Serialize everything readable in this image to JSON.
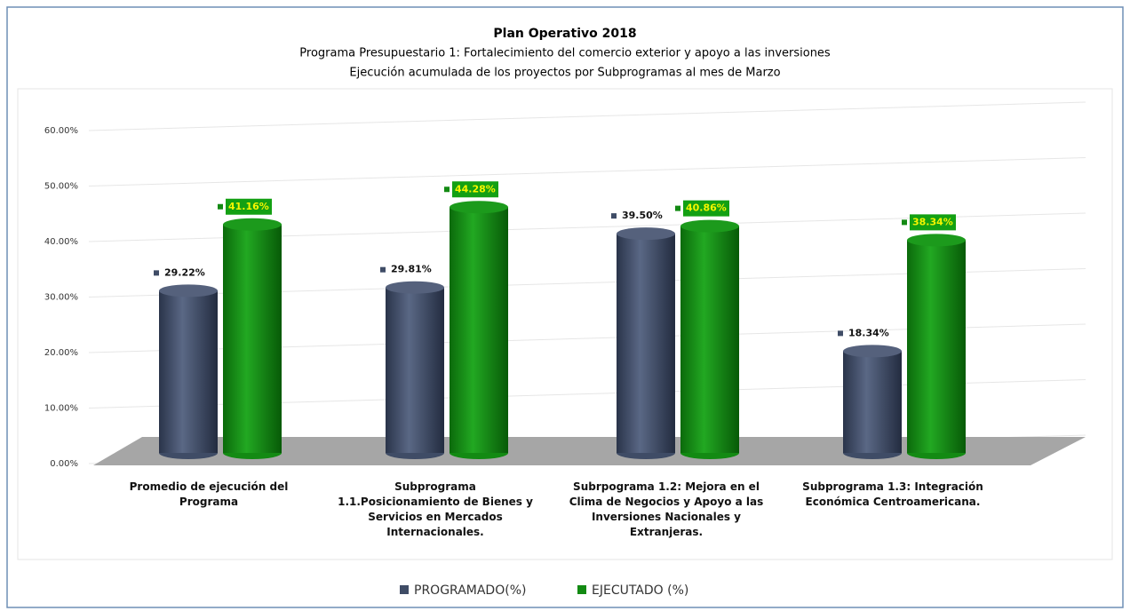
{
  "chart_data": {
    "type": "bar",
    "title": "Plan Operativo 2018",
    "subtitles": [
      "Programa Presupuestario 1: Fortalecimiento del comercio exterior y apoyo a las inversiones",
      "Ejecución acumulada de los proyectos por Subprogramas al mes de Marzo"
    ],
    "categories": [
      "Promedio de ejecución del Programa",
      "Subprograma 1.1.Posicionamiento de Bienes y Servicios en Mercados Internacionales.",
      "Subrpograma 1.2: Mejora en el Clima de Negocios y Apoyo a las Inversiones Nacionales y Extranjeras.",
      "Subprograma 1.3: Integración Económica Centroamericana."
    ],
    "series": [
      {
        "name": "PROGRAMADO(%)",
        "color": "#3f4c66",
        "values": [
          29.22,
          29.81,
          39.5,
          18.34
        ],
        "value_labels": [
          "29.22%",
          "29.81%",
          "39.50%",
          "18.34%"
        ]
      },
      {
        "name": "EJECUTADO (%)",
        "color": "#138a13",
        "values": [
          41.16,
          44.28,
          40.86,
          38.34
        ],
        "value_labels": [
          "41.16%",
          "44.28%",
          "40.86%",
          "38.34%"
        ]
      }
    ],
    "ylim": [
      0,
      60
    ],
    "yticks": [
      {
        "value": 0,
        "label": "0.00%"
      },
      {
        "value": 10,
        "label": "10.00%"
      },
      {
        "value": 20,
        "label": "20.00%"
      },
      {
        "value": 30,
        "label": "30.00%"
      },
      {
        "value": 40,
        "label": "40.00%"
      },
      {
        "value": 50,
        "label": "50.00%"
      },
      {
        "value": 60,
        "label": "60.00%"
      }
    ],
    "grid": true
  }
}
